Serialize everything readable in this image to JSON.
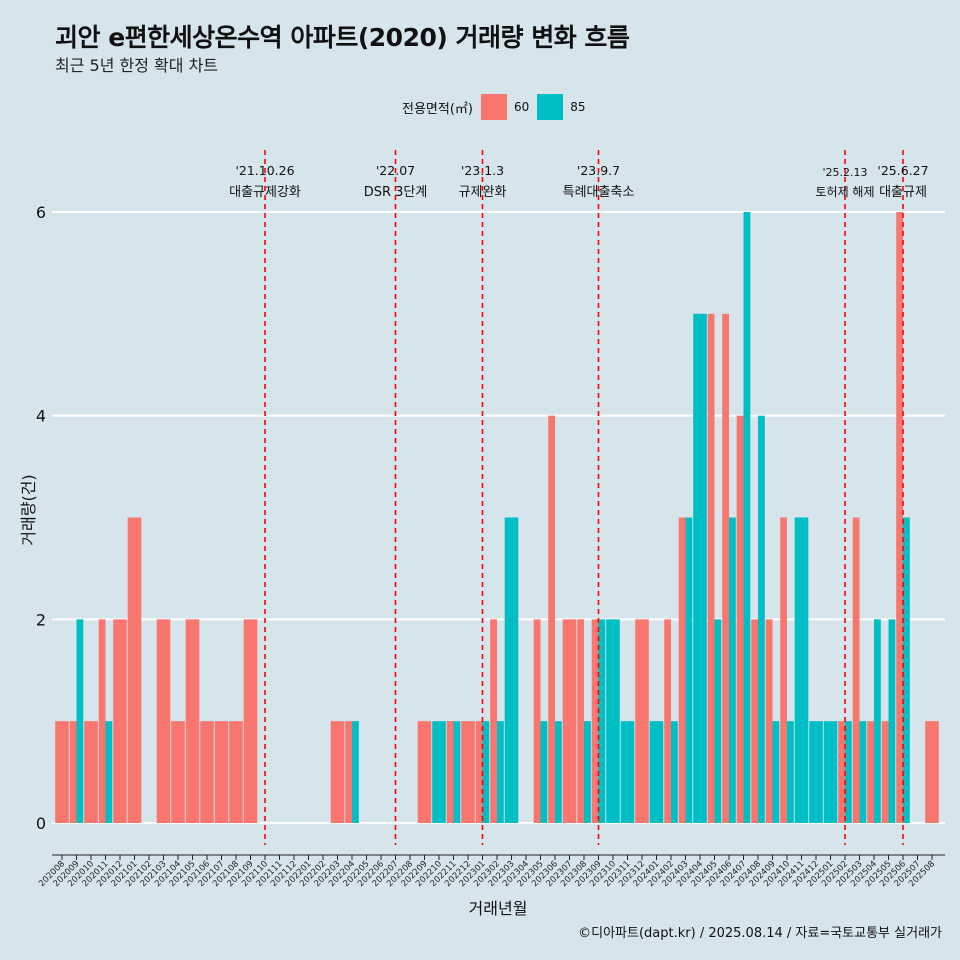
{
  "chart_data": {
    "type": "bar",
    "title": "괴안 e편한세상온수역 아파트(2020) 거래량 변화 흐름",
    "subtitle": "최근 5년 한정 확대 차트",
    "xlabel": "거래년월",
    "ylabel": "거래량(건)",
    "ylim": [
      0,
      6
    ],
    "yticks": [
      0,
      2,
      4,
      6
    ],
    "legend_title": "전용면적(㎡)",
    "legend_position": "top",
    "caption": "©디아파트(dapt.kr) / 2025.08.14 / 자료=국토교통부 실거래가",
    "colors": {
      "60": "#f8766d",
      "85": "#00bfc4",
      "event_line": "#ff0000",
      "background": "#d6e4ec",
      "grid": "#ffffff"
    },
    "categories": [
      "202008",
      "202009",
      "202010",
      "202011",
      "202012",
      "202101",
      "202102",
      "202103",
      "202104",
      "202105",
      "202106",
      "202107",
      "202108",
      "202109",
      "202110",
      "202111",
      "202112",
      "202201",
      "202202",
      "202203",
      "202204",
      "202205",
      "202206",
      "202207",
      "202208",
      "202209",
      "202210",
      "202211",
      "202212",
      "202301",
      "202302",
      "202303",
      "202304",
      "202305",
      "202306",
      "202307",
      "202308",
      "202309",
      "202310",
      "202311",
      "202312",
      "202401",
      "202402",
      "202403",
      "202404",
      "202405",
      "202406",
      "202407",
      "202408",
      "202409",
      "202410",
      "202411",
      "202412",
      "202501",
      "202502",
      "202503",
      "202504",
      "202505",
      "202506",
      "202507",
      "202508"
    ],
    "series": [
      {
        "name": "60",
        "values": [
          1,
          1,
          1,
          2,
          2,
          3,
          0,
          2,
          1,
          2,
          1,
          1,
          1,
          2,
          0,
          0,
          0,
          0,
          0,
          1,
          1,
          0,
          0,
          0,
          0,
          1,
          0,
          1,
          1,
          1,
          2,
          0,
          0,
          2,
          4,
          2,
          2,
          2,
          0,
          0,
          2,
          0,
          2,
          3,
          0,
          5,
          5,
          4,
          2,
          2,
          3,
          0,
          0,
          0,
          1,
          3,
          1,
          1,
          6,
          0,
          1
        ]
      },
      {
        "name": "85",
        "values": [
          0,
          2,
          0,
          1,
          0,
          0,
          0,
          0,
          0,
          0,
          0,
          0,
          0,
          0,
          0,
          0,
          0,
          0,
          0,
          0,
          1,
          0,
          0,
          0,
          0,
          0,
          1,
          1,
          0,
          1,
          1,
          3,
          0,
          1,
          1,
          0,
          1,
          2,
          2,
          1,
          0,
          1,
          1,
          3,
          5,
          2,
          3,
          6,
          4,
          1,
          1,
          3,
          1,
          1,
          1,
          1,
          2,
          2,
          3,
          0,
          0
        ]
      }
    ],
    "events": [
      {
        "date": "'21.10.26",
        "label": "대출규제강화",
        "month": "202110"
      },
      {
        "date": "'22.07",
        "label": "DSR 3단계",
        "month": "202207"
      },
      {
        "date": "'23.1.3",
        "label": "규제완화",
        "month": "202301"
      },
      {
        "date": "'23.9.7",
        "label": "특례대출축소",
        "month": "202309"
      },
      {
        "date": "'25.2.13",
        "label": "토허제 해제",
        "month": "202502"
      },
      {
        "date": "'25.6.27",
        "label": "대출규제",
        "month": "202506"
      }
    ]
  }
}
